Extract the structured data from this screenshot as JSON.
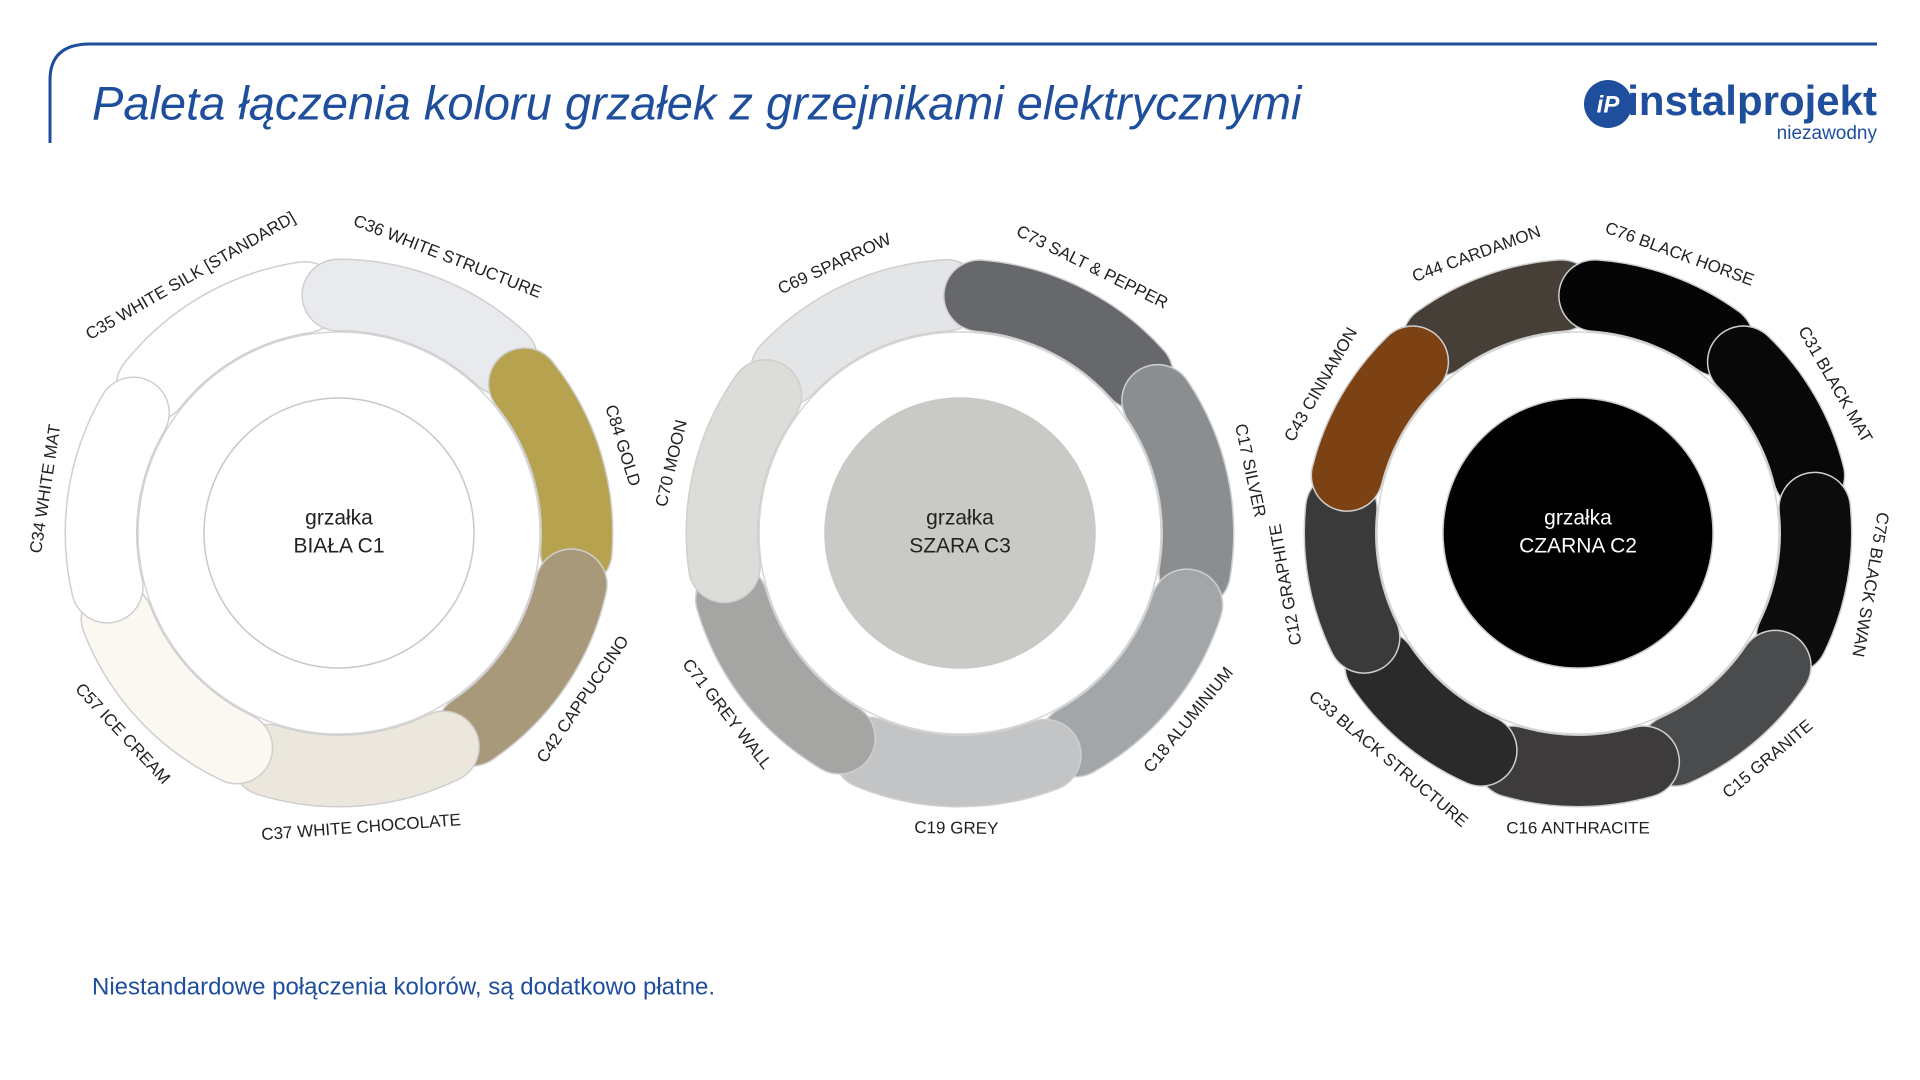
{
  "header": {
    "title": "Paleta łączenia koloru grzałek z grzejnikami elektrycznymi",
    "logo": {
      "mark": "iP",
      "name": "instalprojekt",
      "tagline": "niezawodny"
    }
  },
  "wheels": [
    {
      "center": [
        "grzałka",
        "BIAŁA C1"
      ],
      "center_color": "#ffffff",
      "center_text_color": "#222222",
      "segments": [
        {
          "label": "C35 WHITE SILK [STANDARD]",
          "color": "#ffffff"
        },
        {
          "label": "C36 WHITE STRUCTURE",
          "color": "#e9eaee"
        },
        {
          "label": "C84 GOLD",
          "color": "#b6a24f"
        },
        {
          "label": "C42 CAPPUCCINO",
          "color": "#a8997a"
        },
        {
          "label": "C37 WHITE CHOCOLATE",
          "color": "#ebe7dc"
        },
        {
          "label": "C57 ICE CREAM",
          "color": "#faf8f1"
        },
        {
          "label": "C34 WHITE MAT",
          "color": "#ffffff"
        }
      ]
    },
    {
      "center": [
        "grzałka",
        "SZARA C3"
      ],
      "center_color": "#c9c9c6",
      "center_text_color": "#222222",
      "segments": [
        {
          "label": "C69 SPARROW",
          "color": "#e4e5e7"
        },
        {
          "label": "C73 SALT & PEPPER",
          "color": "#67686b"
        },
        {
          "label": "C17 SILVER",
          "color": "#8b8e91"
        },
        {
          "label": "C18 ALUMINIUM",
          "color": "#a3a6a9"
        },
        {
          "label": "C19 GREY",
          "color": "#c3c4c6"
        },
        {
          "label": "C71 GREY WALL",
          "color": "#a5a5a3"
        },
        {
          "label": "C70 MOON",
          "color": "#dcdcd9"
        }
      ]
    },
    {
      "center": [
        "grzałka",
        "CZARNA C2"
      ],
      "center_color": "#000000",
      "center_text_color": "#ffffff",
      "segments": [
        {
          "label": "C44 CARDAMON",
          "color": "#463f37"
        },
        {
          "label": "C76 BLACK HORSE",
          "color": "#050505"
        },
        {
          "label": "C31 BLACK MAT",
          "color": "#080808"
        },
        {
          "label": "C75 BLACK SWAN",
          "color": "#0c0c0c"
        },
        {
          "label": "C15 GRANITE",
          "color": "#494b4d"
        },
        {
          "label": "C16 ANTHRACITE",
          "color": "#3d3b3b"
        },
        {
          "label": "C33 BLACK STRUCTURE",
          "color": "#2a2a2a"
        },
        {
          "label": "C12 GRAPHITE",
          "color": "#3a3a3a"
        },
        {
          "label": "C43 CINNAMON",
          "color": "#7c4214"
        }
      ]
    }
  ],
  "footer": "Niestandardowe połączenia kolorów, są dodatkowo płatne."
}
